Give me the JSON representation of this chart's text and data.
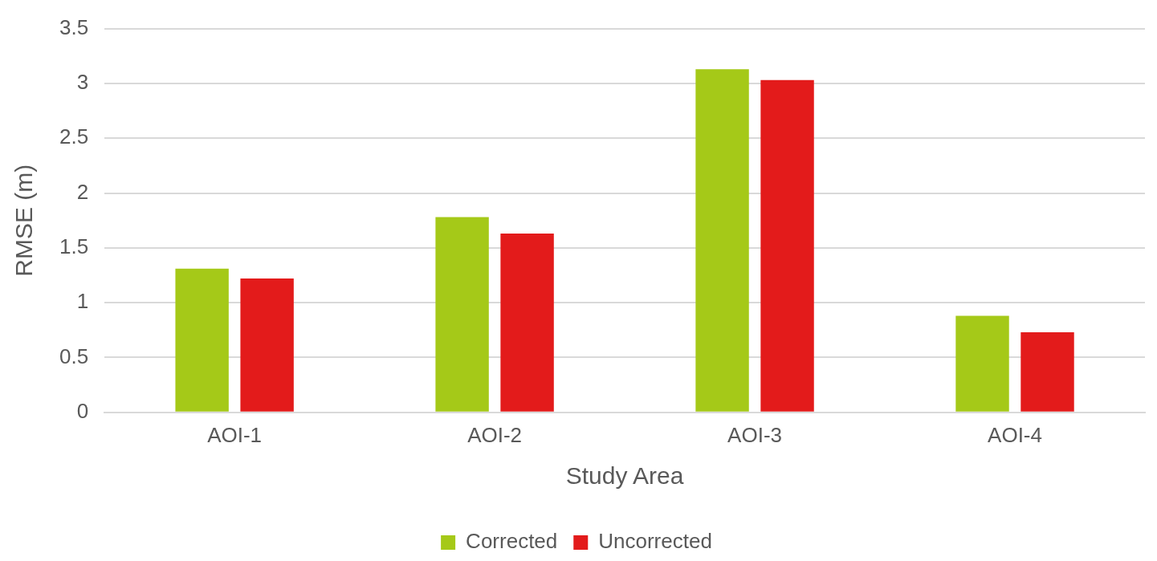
{
  "chart_data": {
    "type": "bar",
    "xlabel": "Study Area",
    "ylabel": "RMSE (m)",
    "categories": [
      "AOI-1",
      "AOI-2",
      "AOI-3",
      "AOI-4"
    ],
    "series": [
      {
        "name": "Corrected",
        "color": "#a5c918",
        "values": [
          1.31,
          1.78,
          3.13,
          0.88
        ]
      },
      {
        "name": "Uncorrected",
        "color": "#e31b1b",
        "values": [
          1.22,
          1.63,
          3.03,
          0.73
        ]
      }
    ],
    "ylim": [
      0,
      3.5
    ],
    "yticks": [
      0,
      0.5,
      1,
      1.5,
      2,
      2.5,
      3,
      3.5
    ],
    "grid": "y",
    "legend": "bottom"
  }
}
